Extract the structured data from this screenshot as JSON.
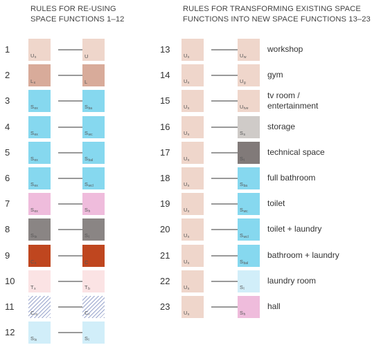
{
  "left_title": {
    "line1": "RULES FOR RE-USING",
    "line2": "SPACE FUNCTIONS 1–12"
  },
  "right_title": {
    "line1": "RULES FOR TRANSFORMING EXISTING SPACE",
    "line2": "FUNCTIONS INTO NEW SPACE FUNCTIONS 13–23"
  },
  "colors": {
    "beige": "#efd6cb",
    "brown": "#d8ab9a",
    "cyan": "#86d8ef",
    "pink": "#efbcdc",
    "gray": "#8a8584",
    "orange": "#bf461f",
    "light_pink": "#fbe3e4",
    "hatch": "#9aa6cd",
    "light_blue": "#d1eef9",
    "light_gray": "#cfcbc8",
    "dark_gray": "#817a79",
    "arrow": "#333333"
  },
  "left_rules": [
    {
      "num": "1",
      "from": {
        "sym": "U",
        "sub": "x",
        "color": "beige"
      },
      "to": {
        "sym": "U",
        "sub": "",
        "color": "beige"
      }
    },
    {
      "num": "2",
      "from": {
        "sym": "L",
        "sub": "x",
        "color": "brown"
      },
      "to": {
        "sym": "L",
        "sub": "",
        "color": "brown"
      }
    },
    {
      "num": "3",
      "from": {
        "sym": "S",
        "sub": "ex",
        "color": "cyan"
      },
      "to": {
        "sym": "S",
        "sub": "ba",
        "color": "cyan"
      }
    },
    {
      "num": "4",
      "from": {
        "sym": "S",
        "sub": "ex",
        "color": "cyan"
      },
      "to": {
        "sym": "S",
        "sub": "wc",
        "color": "cyan"
      }
    },
    {
      "num": "5",
      "from": {
        "sym": "S",
        "sub": "ex",
        "color": "cyan"
      },
      "to": {
        "sym": "S",
        "sub": "bal",
        "color": "cyan"
      }
    },
    {
      "num": "6",
      "from": {
        "sym": "S",
        "sub": "ex",
        "color": "cyan"
      },
      "to": {
        "sym": "S",
        "sub": "wcl",
        "color": "cyan"
      }
    },
    {
      "num": "7",
      "from": {
        "sym": "S",
        "sub": "ex",
        "color": "pink"
      },
      "to": {
        "sym": "S",
        "sub": "h",
        "color": "pink"
      }
    },
    {
      "num": "8",
      "from": {
        "sym": "S",
        "sub": "tx",
        "color": "gray"
      },
      "to": {
        "sym": "S",
        "sub": "t",
        "color": "gray"
      }
    },
    {
      "num": "9",
      "from": {
        "sym": "C",
        "sub": "x",
        "color": "orange"
      },
      "to": {
        "sym": "C",
        "sub": "",
        "color": "orange"
      }
    },
    {
      "num": "10",
      "from": {
        "sym": "T",
        "sub": "x",
        "color": "light_pink"
      },
      "to": {
        "sym": "T",
        "sub": "b",
        "color": "light_pink"
      }
    },
    {
      "num": "11",
      "from": {
        "sym": "C",
        "sub": "rx",
        "color": "hatch"
      },
      "to": {
        "sym": "C",
        "sub": "r",
        "color": "hatch"
      }
    },
    {
      "num": "12",
      "from": {
        "sym": "S",
        "sub": "lx",
        "color": "light_blue"
      },
      "to": {
        "sym": "S",
        "sub": "l",
        "color": "light_blue"
      }
    }
  ],
  "right_rules": [
    {
      "num": "13",
      "from": {
        "sym": "U",
        "sub": "x",
        "color": "beige"
      },
      "to": {
        "sym": "U",
        "sub": "w",
        "color": "beige"
      },
      "label": "workshop"
    },
    {
      "num": "14",
      "from": {
        "sym": "U",
        "sub": "x",
        "color": "beige"
      },
      "to": {
        "sym": "U",
        "sub": "g",
        "color": "beige"
      },
      "label": "gym"
    },
    {
      "num": "15",
      "from": {
        "sym": "U",
        "sub": "x",
        "color": "beige"
      },
      "to": {
        "sym": "U",
        "sub": "tve",
        "color": "beige"
      },
      "label": "tv room /",
      "label2": "entertainment"
    },
    {
      "num": "16",
      "from": {
        "sym": "U",
        "sub": "x",
        "color": "beige"
      },
      "to": {
        "sym": "S",
        "sub": "s",
        "color": "light_gray"
      },
      "label": "storage"
    },
    {
      "num": "17",
      "from": {
        "sym": "U",
        "sub": "x",
        "color": "beige"
      },
      "to": {
        "sym": "S",
        "sub": "t",
        "color": "dark_gray"
      },
      "label": "technical space"
    },
    {
      "num": "18",
      "from": {
        "sym": "U",
        "sub": "x",
        "color": "beige"
      },
      "to": {
        "sym": "S",
        "sub": "ba",
        "color": "cyan"
      },
      "label": "full bathroom"
    },
    {
      "num": "19",
      "from": {
        "sym": "U",
        "sub": "x",
        "color": "beige"
      },
      "to": {
        "sym": "S",
        "sub": "wc",
        "color": "cyan"
      },
      "label": "toilet"
    },
    {
      "num": "20",
      "from": {
        "sym": "U",
        "sub": "x",
        "color": "beige"
      },
      "to": {
        "sym": "S",
        "sub": "wcl",
        "color": "cyan"
      },
      "label": "toilet + laundry"
    },
    {
      "num": "21",
      "from": {
        "sym": "U",
        "sub": "x",
        "color": "beige"
      },
      "to": {
        "sym": "S",
        "sub": "bal",
        "color": "cyan"
      },
      "label": "bathroom + laundry"
    },
    {
      "num": "22",
      "from": {
        "sym": "U",
        "sub": "x",
        "color": "beige"
      },
      "to": {
        "sym": "S",
        "sub": "l",
        "color": "light_blue"
      },
      "label": "laundry room"
    },
    {
      "num": "23",
      "from": {
        "sym": "U",
        "sub": "x",
        "color": "beige"
      },
      "to": {
        "sym": "S",
        "sub": "h",
        "color": "pink"
      },
      "label": "hall"
    }
  ]
}
